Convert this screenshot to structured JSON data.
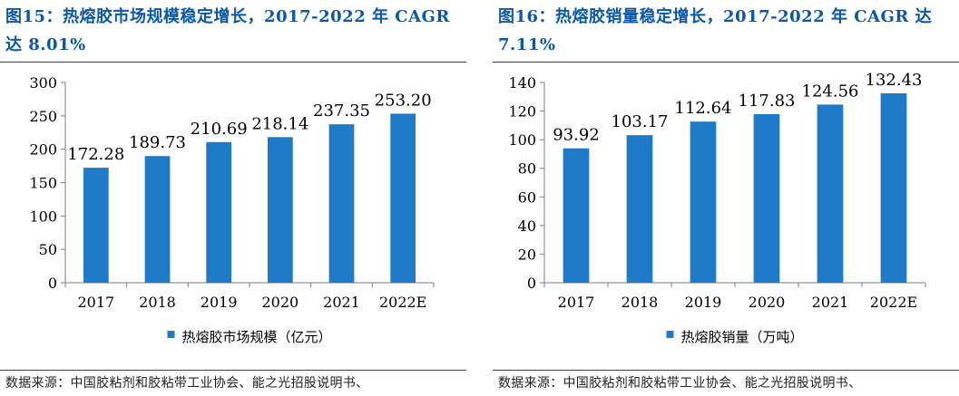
{
  "panels": [
    {
      "title": "图15：热熔胶市场规模稳定增长，2017-2022 年 CAGR 达 8.01%",
      "source": "数据来源：中国胶粘剂和胶粘带工业协会、能之光招股说明书、",
      "chart_data": {
        "type": "bar",
        "categories": [
          "2017",
          "2018",
          "2019",
          "2020",
          "2021",
          "2022E"
        ],
        "series": [
          {
            "name": "热熔胶市场规模（亿元）",
            "values": [
              172.28,
              189.73,
              210.69,
              218.14,
              237.35,
              253.2
            ]
          }
        ],
        "data_labels": [
          "172.28",
          "189.73",
          "210.69",
          "218.14",
          "237.35",
          "253.20"
        ],
        "yticks": [
          "0",
          "50",
          "100",
          "150",
          "200",
          "250",
          "300"
        ],
        "ylim": [
          0,
          300
        ],
        "grid": false,
        "legend": "bottom",
        "bar_color": "#1f7bc7"
      }
    },
    {
      "title": "图16：热熔胶销量稳定增长，2017-2022 年 CAGR 达 7.11%",
      "source": "数据来源：中国胶粘剂和胶粘带工业协会、能之光招股说明书、",
      "chart_data": {
        "type": "bar",
        "categories": [
          "2017",
          "2018",
          "2019",
          "2020",
          "2021",
          "2022E"
        ],
        "series": [
          {
            "name": "热熔胶销量（万吨）",
            "values": [
              93.92,
              103.17,
              112.64,
              117.83,
              124.56,
              132.43
            ]
          }
        ],
        "data_labels": [
          "93.92",
          "103.17",
          "112.64",
          "117.83",
          "124.56",
          "132.43"
        ],
        "yticks": [
          "0",
          "20",
          "40",
          "60",
          "80",
          "100",
          "120",
          "140"
        ],
        "ylim": [
          0,
          140
        ],
        "grid": false,
        "legend": "bottom",
        "bar_color": "#1f7bc7"
      }
    }
  ]
}
